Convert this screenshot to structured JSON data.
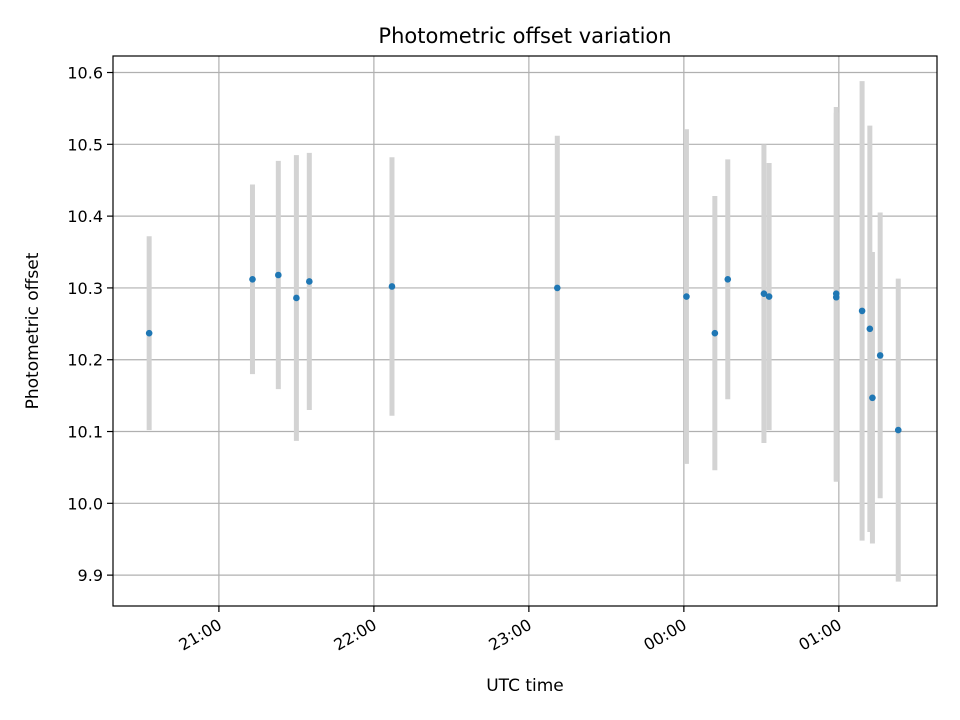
{
  "chart_data": {
    "type": "scatter",
    "title": "Photometric offset variation",
    "xlabel": "UTC time",
    "ylabel": "Photometric offset",
    "x_unit": "time (HH:MM UTC)",
    "xlim": [
      "20:19",
      "01:38"
    ],
    "ylim": [
      9.857,
      10.623
    ],
    "grid": true,
    "x_ticks": [
      "21:00",
      "22:00",
      "23:00",
      "00:00",
      "01:00"
    ],
    "y_ticks": [
      "9.9",
      "10.0",
      "10.1",
      "10.2",
      "10.3",
      "10.4",
      "10.5",
      "10.6"
    ],
    "colors": {
      "points": "#1f77b4",
      "error_bars": "#d3d3d3",
      "grid": "#b0b0b0"
    },
    "points": [
      {
        "x": "20:33",
        "y": 10.237,
        "err": 0.135
      },
      {
        "x": "21:13",
        "y": 10.312,
        "err": 0.132
      },
      {
        "x": "21:23",
        "y": 10.318,
        "err": 0.159
      },
      {
        "x": "21:30",
        "y": 10.286,
        "err": 0.199
      },
      {
        "x": "21:35",
        "y": 10.309,
        "err": 0.179
      },
      {
        "x": "22:07",
        "y": 10.302,
        "err": 0.18
      },
      {
        "x": "23:11",
        "y": 10.3,
        "err": 0.212
      },
      {
        "x": "00:01",
        "y": 10.288,
        "err": 0.233
      },
      {
        "x": "00:12",
        "y": 10.237,
        "err": 0.191
      },
      {
        "x": "00:17",
        "y": 10.312,
        "err": 0.167
      },
      {
        "x": "00:31",
        "y": 10.292,
        "err": 0.208
      },
      {
        "x": "00:33",
        "y": 10.288,
        "err": 0.186
      },
      {
        "x": "00:59",
        "y": 10.287,
        "err": 0.257
      },
      {
        "x": "00:59",
        "y": 10.292,
        "err": 0.26
      },
      {
        "x": "01:09",
        "y": 10.268,
        "err": 0.32
      },
      {
        "x": "01:12",
        "y": 10.243,
        "err": 0.283
      },
      {
        "x": "01:13",
        "y": 10.147,
        "err": 0.203
      },
      {
        "x": "01:16",
        "y": 10.206,
        "err": 0.199
      },
      {
        "x": "01:23",
        "y": 10.102,
        "err": 0.211
      }
    ]
  }
}
